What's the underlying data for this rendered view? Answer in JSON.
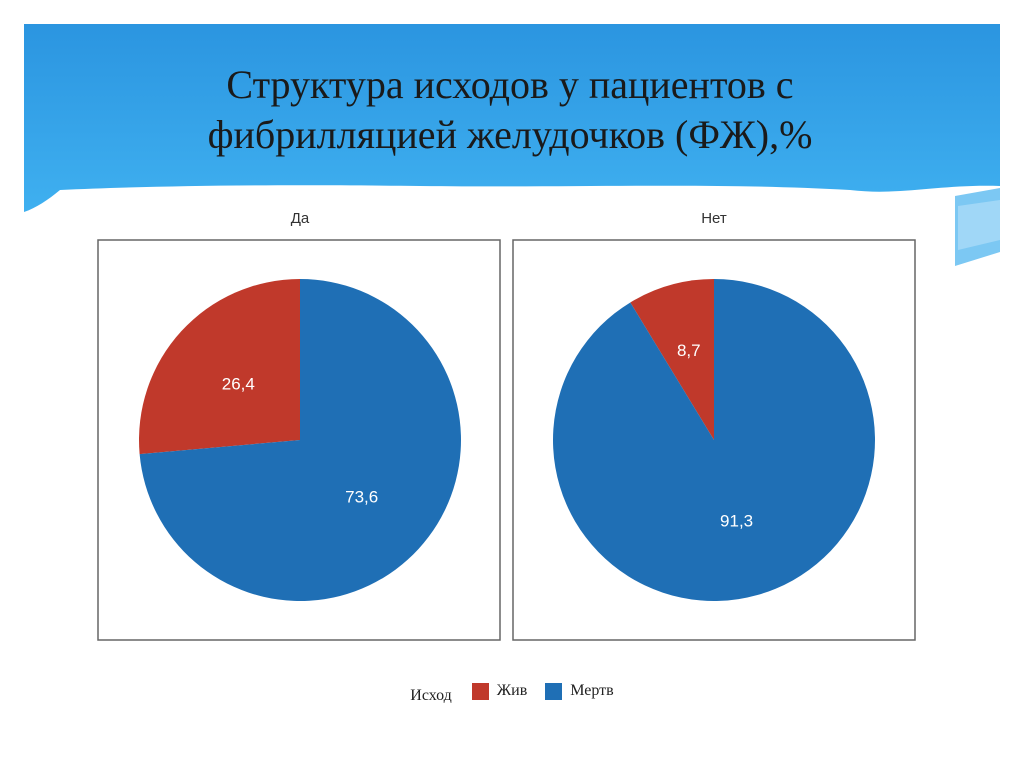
{
  "slide": {
    "title_line1": "Структура исходов у пациентов с",
    "title_line2": "фибрилляцией желудочков (ФЖ),%"
  },
  "colors": {
    "banner": "#2e9fe6",
    "banner_light": "#8fd0f5",
    "alive": "#c0392b",
    "dead": "#1f6fb5",
    "panel_border": "#666666"
  },
  "legend": {
    "title": "Исход",
    "items": [
      {
        "label": "Жив",
        "color": "#c0392b"
      },
      {
        "label": "Мертв",
        "color": "#1f6fb5"
      }
    ]
  },
  "chart_data": [
    {
      "type": "pie",
      "facet": "Да",
      "categories": [
        "Жив",
        "Мертв"
      ],
      "values": [
        26.4,
        73.6
      ],
      "labels": [
        "26,4",
        "73,6"
      ]
    },
    {
      "type": "pie",
      "facet": "Нет",
      "categories": [
        "Жив",
        "Мертв"
      ],
      "values": [
        8.7,
        91.3
      ],
      "labels": [
        "8,7",
        "91,3"
      ]
    }
  ]
}
